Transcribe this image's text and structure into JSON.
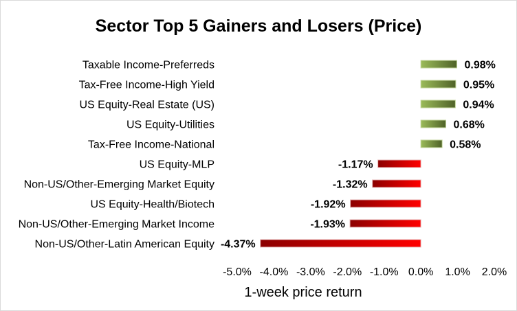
{
  "chart_data": {
    "type": "bar",
    "orientation": "horizontal",
    "title": "Sector Top 5 Gainers and Losers (Price)",
    "xlabel": "1-week price return",
    "ylabel": "",
    "categories": [
      "Taxable Income-Preferreds",
      "Tax-Free Income-High Yield",
      "US Equity-Real Estate (US)",
      "US Equity-Utilities",
      "Tax-Free Income-National",
      "US Equity-MLP",
      "Non-US/Other-Emerging Market Equity",
      "US Equity-Health/Biotech",
      "Non-US/Other-Emerging Market Income",
      "Non-US/Other-Latin American Equity"
    ],
    "values": [
      0.98,
      0.95,
      0.94,
      0.68,
      0.58,
      -1.17,
      -1.32,
      -1.92,
      -1.93,
      -4.37
    ],
    "data_labels": [
      "0.98%",
      "0.95%",
      "0.94%",
      "0.68%",
      "0.58%",
      "-1.17%",
      "-1.32%",
      "-1.92%",
      "-1.93%",
      "-4.37%"
    ],
    "xlim": [
      -5.0,
      2.0
    ],
    "x_ticks": [
      -5,
      -4,
      -3,
      -2,
      -1,
      0,
      1,
      2
    ],
    "x_tick_labels": [
      "-5.0%",
      "-4.0%",
      "-3.0%",
      "-2.0%",
      "-1.0%",
      "0.0%",
      "1.0%",
      "2.0%"
    ],
    "grid": false,
    "legend": "none",
    "colors": {
      "positive_dark": "#4f6228",
      "positive_light": "#9bbb59",
      "negative_dark": "#8b0000",
      "negative_light": "#ff0000"
    }
  }
}
